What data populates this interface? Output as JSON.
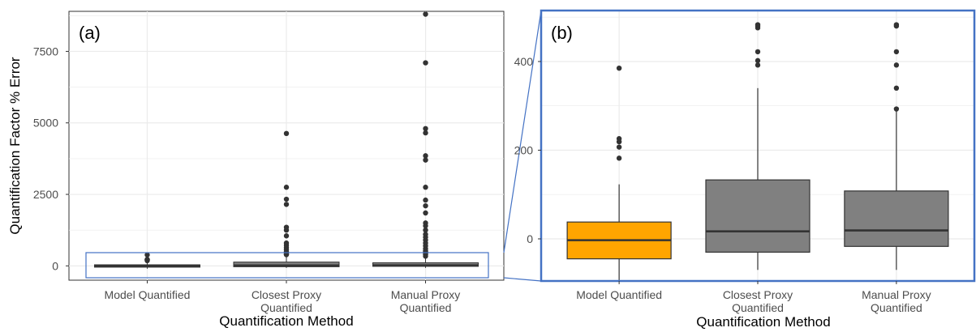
{
  "figure": {
    "zoom_box_color": "#4472c4"
  },
  "chart_data": [
    {
      "type": "box",
      "panel_label": "(a)",
      "xlabel": "Quantification Method",
      "ylabel": "Quantification Factor % Error",
      "ylim": [
        -500,
        8900
      ],
      "yticks": [
        0,
        2500,
        5000,
        7500
      ],
      "ytick_labels": [
        "0",
        "2500",
        "5000",
        "7500"
      ],
      "grid": true,
      "categories": [
        {
          "label": [
            "Model Quantified"
          ],
          "fill": "#ffa500",
          "q1": -45,
          "median": -3,
          "q3": 38,
          "whisker_low": -100,
          "whisker_high": 123,
          "outliers": [
            182,
            207,
            219,
            226,
            385
          ]
        },
        {
          "label": [
            "Closest Proxy",
            "Quantified"
          ],
          "fill": "#808080",
          "q1": -30,
          "median": 17,
          "q3": 133,
          "whisker_low": -70,
          "whisker_high": 340,
          "outliers": [
            392,
            402,
            422,
            476,
            483,
            560,
            640,
            720,
            800,
            1050,
            1250,
            1350,
            2150,
            2330,
            2750,
            4630
          ]
        },
        {
          "label": [
            "Manual Proxy",
            "Quantified"
          ],
          "fill": "#808080",
          "q1": -17,
          "median": 19,
          "q3": 108,
          "whisker_low": -70,
          "whisker_high": 290,
          "outliers": [
            340,
            392,
            422,
            480,
            485,
            520,
            600,
            700,
            800,
            900,
            1000,
            1100,
            1250,
            1400,
            1500,
            1850,
            2100,
            2300,
            2750,
            3700,
            3850,
            4650,
            4800,
            7100,
            8800
          ]
        }
      ]
    },
    {
      "type": "box",
      "panel_label": "(b)",
      "xlabel": "Quantification Method",
      "ylabel": "",
      "ylim": [
        -95,
        515
      ],
      "yticks": [
        0,
        200,
        400
      ],
      "ytick_labels": [
        "0",
        "200",
        "400"
      ],
      "grid": true,
      "categories": [
        {
          "label": [
            "Model Quantified"
          ],
          "fill": "#ffa500",
          "q1": -45,
          "median": -3,
          "q3": 38,
          "whisker_low": -100,
          "whisker_high": 123,
          "outliers": [
            182,
            207,
            219,
            226,
            385
          ]
        },
        {
          "label": [
            "Closest Proxy",
            "Quantified"
          ],
          "fill": "#808080",
          "q1": -30,
          "median": 17,
          "q3": 133,
          "whisker_low": -70,
          "whisker_high": 340,
          "outliers": [
            392,
            402,
            422,
            476,
            480,
            483
          ]
        },
        {
          "label": [
            "Manual Proxy",
            "Quantified"
          ],
          "fill": "#808080",
          "q1": -17,
          "median": 19,
          "q3": 108,
          "whisker_low": -70,
          "whisker_high": 290,
          "outliers": [
            293,
            340,
            392,
            422,
            480,
            483
          ]
        }
      ]
    }
  ]
}
